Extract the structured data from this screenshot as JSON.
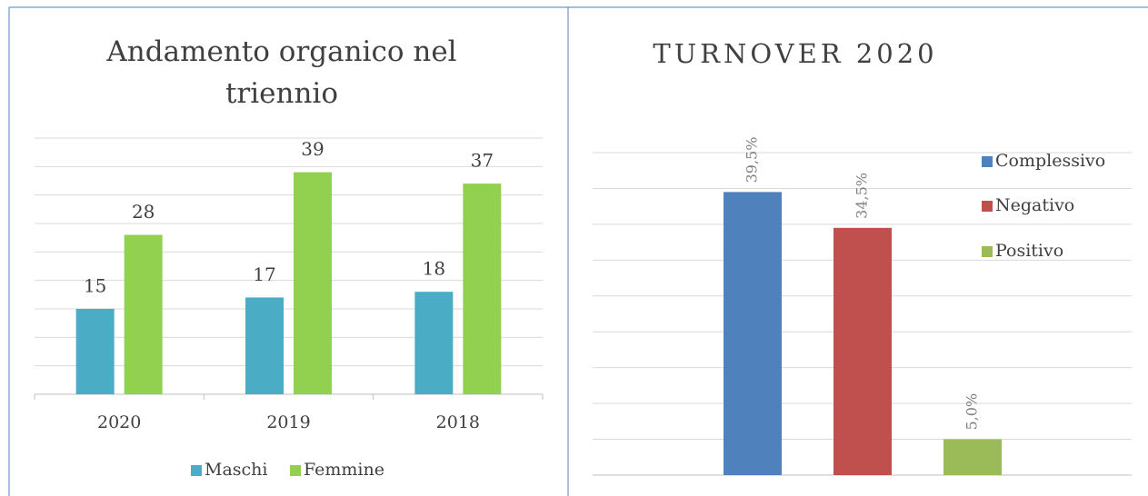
{
  "chart_data": [
    {
      "type": "bar",
      "title": "Andamento organico nel triennio",
      "categories": [
        "2020",
        "2019",
        "2018"
      ],
      "series": [
        {
          "name": "Maschi",
          "color": "#4bacc6",
          "values": [
            15,
            17,
            18
          ]
        },
        {
          "name": "Femmine",
          "color": "#92d050",
          "values": [
            28,
            39,
            37
          ]
        }
      ],
      "ylim": [
        0,
        45
      ],
      "yticks": [
        0,
        5,
        10,
        15,
        20,
        25,
        30,
        35,
        40,
        45
      ],
      "grid": true,
      "legend": "bottom"
    },
    {
      "type": "bar",
      "title": "TURNOVER 2020",
      "series": [
        {
          "name": "Complessivo",
          "color": "#4f81bd",
          "values": [
            39.5
          ],
          "value_labels": [
            "39,5%"
          ]
        },
        {
          "name": "Negativo",
          "color": "#c0504d",
          "values": [
            34.5
          ],
          "value_labels": [
            "34,5%"
          ]
        },
        {
          "name": "Positivo",
          "color": "#9bbb59",
          "values": [
            5.0
          ],
          "value_labels": [
            "5,0%"
          ]
        }
      ],
      "ylim": [
        0,
        45
      ],
      "yticks": [
        0,
        5,
        10,
        15,
        20,
        25,
        30,
        35,
        40,
        45
      ],
      "grid": true,
      "legend": "right"
    }
  ]
}
